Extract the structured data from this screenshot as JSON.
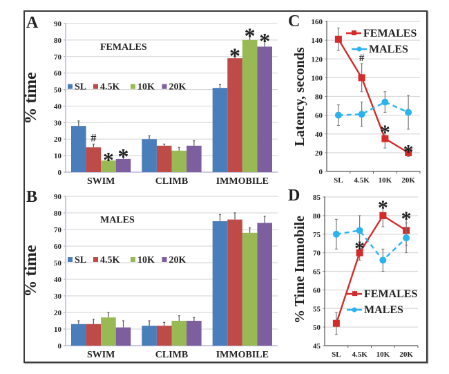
{
  "figure": {
    "colors": {
      "SL": "#4a7ebb",
      "4.5K": "#be4b48",
      "10K": "#98b954",
      "20K": "#7d5fa0",
      "FEMALES": "#d42a2a",
      "MALES": "#2ab3ee",
      "grid": "#d9d9d9",
      "error": "#555555"
    }
  },
  "chart_data": [
    {
      "panel": "A",
      "type": "bar",
      "title": "FEMALES",
      "xlabel": "",
      "ylabel": "% time",
      "ylim": [
        0,
        90
      ],
      "yticks": [
        0,
        10,
        20,
        30,
        40,
        50,
        60,
        70,
        80,
        90
      ],
      "grid": true,
      "legend": "top-left (horizontal)",
      "categories": [
        "SWIM",
        "CLIMB",
        "IMMOBILE"
      ],
      "series": [
        {
          "name": "SL",
          "values": [
            28,
            20,
            51
          ],
          "errors": [
            3,
            2,
            2
          ]
        },
        {
          "name": "4.5K",
          "values": [
            15,
            16,
            69
          ],
          "errors": [
            2,
            1,
            2
          ]
        },
        {
          "name": "10K",
          "values": [
            7,
            13,
            80
          ],
          "errors": [
            1,
            2,
            3
          ]
        },
        {
          "name": "20K",
          "values": [
            8,
            16,
            76
          ],
          "errors": [
            2,
            3,
            4
          ]
        }
      ],
      "annotations": [
        {
          "category": "SWIM",
          "series": "4.5K",
          "text": "#"
        },
        {
          "category": "SWIM",
          "series": "10K",
          "text": "*"
        },
        {
          "category": "SWIM",
          "series": "20K",
          "text": "*"
        },
        {
          "category": "IMMOBILE",
          "series": "4.5K",
          "text": "*"
        },
        {
          "category": "IMMOBILE",
          "series": "10K",
          "text": "*"
        },
        {
          "category": "IMMOBILE",
          "series": "20K",
          "text": "*"
        }
      ]
    },
    {
      "panel": "B",
      "type": "bar",
      "title": "MALES",
      "xlabel": "",
      "ylabel": "% time",
      "ylim": [
        0,
        90
      ],
      "yticks": [
        0,
        10,
        20,
        30,
        40,
        50,
        60,
        70,
        80,
        90
      ],
      "grid": true,
      "legend": "top-left (horizontal)",
      "categories": [
        "SWIM",
        "CLIMB",
        "IMMOBILE"
      ],
      "series": [
        {
          "name": "SL",
          "values": [
            13,
            12,
            75
          ],
          "errors": [
            2,
            3,
            4
          ]
        },
        {
          "name": "4.5K",
          "values": [
            13,
            12,
            76
          ],
          "errors": [
            3,
            2,
            4
          ]
        },
        {
          "name": "10K",
          "values": [
            17,
            15,
            68
          ],
          "errors": [
            3,
            3,
            3
          ]
        },
        {
          "name": "20K",
          "values": [
            11,
            15,
            74
          ],
          "errors": [
            4,
            2,
            4
          ]
        }
      ],
      "annotations": []
    },
    {
      "panel": "C",
      "type": "line",
      "title": "",
      "xlabel": "",
      "ylabel": "Latency, seconds",
      "ylim": [
        0,
        160
      ],
      "yticks": [
        0,
        20,
        40,
        60,
        80,
        100,
        120,
        140,
        160
      ],
      "grid": true,
      "legend": "top-right",
      "x": [
        "SL",
        "4.5K",
        "10K",
        "20K"
      ],
      "series": [
        {
          "name": "FEMALES",
          "style": "solid",
          "marker": "square",
          "values": [
            141,
            100,
            35,
            20
          ],
          "errors": [
            12,
            15,
            10,
            4
          ]
        },
        {
          "name": "MALES",
          "style": "dashed",
          "marker": "circle",
          "values": [
            60,
            61,
            74,
            63
          ],
          "errors": [
            11,
            13,
            11,
            18
          ]
        }
      ],
      "annotations": [
        {
          "x": "4.5K",
          "series": "FEMALES",
          "text": "#"
        },
        {
          "x": "10K",
          "series": "FEMALES",
          "text": "*"
        },
        {
          "x": "20K",
          "series": "FEMALES",
          "text": "*"
        }
      ]
    },
    {
      "panel": "D",
      "type": "line",
      "title": "",
      "xlabel": "",
      "ylabel": "% Time Immobile",
      "ylim": [
        45,
        85
      ],
      "yticks": [
        45,
        50,
        55,
        60,
        65,
        70,
        75,
        80,
        85
      ],
      "grid": true,
      "legend": "bottom-right",
      "x": [
        "SL",
        "4.5K",
        "10K",
        "20K"
      ],
      "series": [
        {
          "name": "FEMALES",
          "style": "solid",
          "marker": "square",
          "values": [
            51,
            70,
            80,
            76
          ],
          "errors": [
            3,
            2,
            3,
            4
          ]
        },
        {
          "name": "MALES",
          "style": "dashed",
          "marker": "circle",
          "values": [
            75,
            76,
            68,
            74
          ],
          "errors": [
            4,
            4,
            3,
            4
          ]
        }
      ],
      "annotations": [
        {
          "x": "4.5K",
          "series": "FEMALES",
          "text": "*"
        },
        {
          "x": "10K",
          "series": "FEMALES",
          "text": "*"
        },
        {
          "x": "20K",
          "series": "FEMALES",
          "text": "*"
        }
      ]
    }
  ]
}
